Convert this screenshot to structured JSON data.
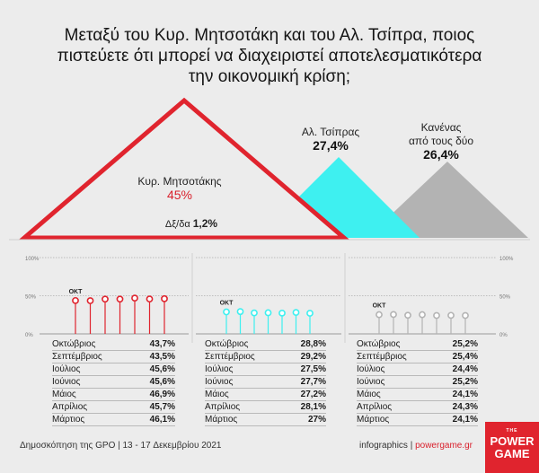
{
  "title": {
    "line1": "Μεταξύ του Κυρ. Μητσοτάκη και του Αλ. Τσίπρα, ποιος",
    "line2": "πιστεύετε ότι μπορεί να διαχειριστεί αποτελεσματικότερα",
    "line3": "την οικονομική κρίση;"
  },
  "candidates": [
    {
      "name": "Κυρ. Μητσοτάκης",
      "value": "45%",
      "color": "#e0242e"
    },
    {
      "name": "Αλ. Τσίπρας",
      "value": "27,4%",
      "color": "#3ef0f0"
    },
    {
      "name_line1": "Κανένας",
      "name_line2": "από τους δύο",
      "value": "26,4%",
      "color": "#b3b3b3"
    }
  ],
  "dont_know": {
    "label": "Δξ/δα",
    "value": "1,2%"
  },
  "axis_labels": {
    "top": "100%",
    "mid": "50%",
    "bottom": "0%",
    "start": "ΟΚΤ"
  },
  "chart_data": [
    {
      "type": "line",
      "name": "Κυρ. Μητσοτάκης",
      "ylim": [
        0,
        100
      ],
      "color": "#e0242e",
      "x": [
        "Οκτώβριος",
        "Σεπτέμβριος",
        "Ιούλιος",
        "Ιούνιος",
        "Μάιος",
        "Απρίλιος",
        "Μάρτιος"
      ],
      "values": [
        43.7,
        43.5,
        45.6,
        45.6,
        46.9,
        45.7,
        46.1
      ],
      "labels": [
        "43,7%",
        "43,5%",
        "45,6%",
        "45,6%",
        "46,9%",
        "45,7%",
        "46,1%"
      ]
    },
    {
      "type": "line",
      "name": "Αλ. Τσίπρας",
      "ylim": [
        0,
        100
      ],
      "color": "#3ef0f0",
      "x": [
        "Οκτώβριος",
        "Σεπτέμβριος",
        "Ιούλιος",
        "Ιούνιος",
        "Μάιος",
        "Απρίλιος",
        "Μάρτιος"
      ],
      "values": [
        28.8,
        29.2,
        27.5,
        27.7,
        27.2,
        28.1,
        27
      ],
      "labels": [
        "28,8%",
        "29,2%",
        "27,5%",
        "27,7%",
        "27,2%",
        "28,1%",
        "27%"
      ]
    },
    {
      "type": "line",
      "name": "Κανένας από τους δύο",
      "ylim": [
        0,
        100
      ],
      "color": "#b3b3b3",
      "x": [
        "Οκτώβριος",
        "Σεπτέμβριος",
        "Ιούλιος",
        "Ιούνιος",
        "Μάιος",
        "Απρίλιος",
        "Μάρτιος"
      ],
      "values": [
        25.2,
        25.4,
        24.4,
        25.2,
        24.1,
        24.3,
        24.1
      ],
      "labels": [
        "25,2%",
        "25,4%",
        "24,4%",
        "25,2%",
        "24,1%",
        "24,3%",
        "24,1%"
      ]
    }
  ],
  "footer": {
    "source": "Δημοσκόπηση της GPO | 13 - 17 Δεκεμβρίου 2021",
    "credit": "infographics | ",
    "site": "powergame.gr"
  },
  "logo": {
    "the": "THE",
    "line1": "POWER",
    "line2": "GAME"
  }
}
